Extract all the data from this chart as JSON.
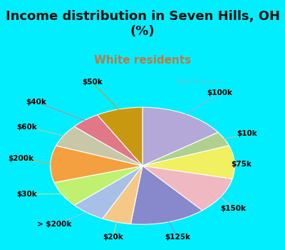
{
  "title": "Income distribution in Seven Hills, OH\n(%)",
  "subtitle": "White residents",
  "title_color": "#111111",
  "subtitle_color": "#c07840",
  "bg_top_color": "#00eeff",
  "chart_bg_color": "#dff5ec",
  "labels": [
    "$100k",
    "$10k",
    "$75k",
    "$150k",
    "$125k",
    "$20k",
    "> $200k",
    "$30k",
    "$200k",
    "$60k",
    "$40k",
    "$50k"
  ],
  "values": [
    15,
    4,
    9,
    10,
    13,
    5,
    6,
    7,
    10,
    6,
    5,
    8
  ],
  "colors": [
    "#b3a8d8",
    "#b0d090",
    "#f0f060",
    "#f0b8c0",
    "#8888cc",
    "#f5c888",
    "#a8c0e8",
    "#c0f070",
    "#f5a040",
    "#c8c8a8",
    "#e07888",
    "#c89810"
  ],
  "label_fontsize": 7.5,
  "title_fontsize": 13,
  "subtitle_fontsize": 11,
  "startangle": 90,
  "watermark": "City-Data.com"
}
